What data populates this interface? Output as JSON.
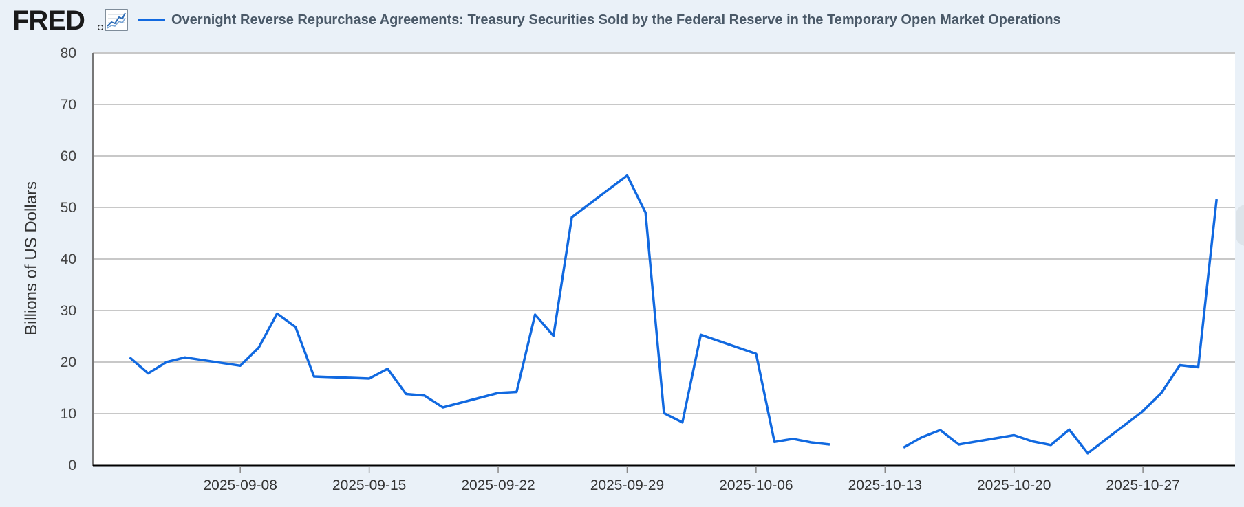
{
  "header": {
    "logo_text": "FRED",
    "chart_icon": "line-chart-icon",
    "legend_label": "Overnight Reverse Repurchase Agreements: Treasury Securities Sold by the Federal Reserve in the Temporary Open Market Operations"
  },
  "colors": {
    "series": "#1169e0",
    "grid": "#c8c8c8",
    "background": "#eaf1f8",
    "plot_background": "#ffffff",
    "axis": "#000000"
  },
  "chart_data": {
    "type": "line",
    "title": "",
    "xlabel": "",
    "ylabel": "Billions of US Dollars",
    "ylim": [
      0,
      80
    ],
    "yticks": [
      0,
      10,
      20,
      30,
      40,
      50,
      60,
      70,
      80
    ],
    "xlim": [
      "2025-08-31",
      "2025-11-01"
    ],
    "xticks": [
      "2025-09-08",
      "2025-09-15",
      "2025-09-22",
      "2025-09-29",
      "2025-10-06",
      "2025-10-13",
      "2025-10-20",
      "2025-10-27"
    ],
    "grid": true,
    "legend_position": "top",
    "series": [
      {
        "name": "Overnight Reverse Repurchase Agreements: Treasury Securities Sold by the Federal Reserve in the Temporary Open Market Operations",
        "x": [
          "2025-09-02",
          "2025-09-03",
          "2025-09-04",
          "2025-09-05",
          "2025-09-08",
          "2025-09-09",
          "2025-09-10",
          "2025-09-11",
          "2025-09-12",
          "2025-09-15",
          "2025-09-16",
          "2025-09-17",
          "2025-09-18",
          "2025-09-19",
          "2025-09-22",
          "2025-09-23",
          "2025-09-24",
          "2025-09-25",
          "2025-09-26",
          "2025-09-29",
          "2025-09-30",
          "2025-10-01",
          "2025-10-02",
          "2025-10-03",
          "2025-10-06",
          "2025-10-07",
          "2025-10-08",
          "2025-10-09",
          "2025-10-10",
          "2025-10-13",
          "2025-10-14",
          "2025-10-15",
          "2025-10-16",
          "2025-10-17",
          "2025-10-20",
          "2025-10-21",
          "2025-10-22",
          "2025-10-23",
          "2025-10-24",
          "2025-10-27",
          "2025-10-28",
          "2025-10-29",
          "2025-10-30",
          "2025-10-31"
        ],
        "y": [
          20.9,
          17.8,
          20.0,
          20.9,
          19.3,
          22.8,
          29.4,
          26.8,
          17.2,
          16.8,
          18.7,
          13.8,
          13.5,
          11.2,
          14.0,
          14.2,
          29.2,
          25.1,
          48.1,
          56.2,
          49.0,
          10.1,
          8.3,
          25.3,
          21.6,
          4.5,
          5.1,
          4.4,
          4.0,
          null,
          3.4,
          5.4,
          6.8,
          4.0,
          5.8,
          4.6,
          3.9,
          6.9,
          2.3,
          10.5,
          14.0,
          19.4,
          19.0,
          51.6
        ]
      }
    ]
  }
}
